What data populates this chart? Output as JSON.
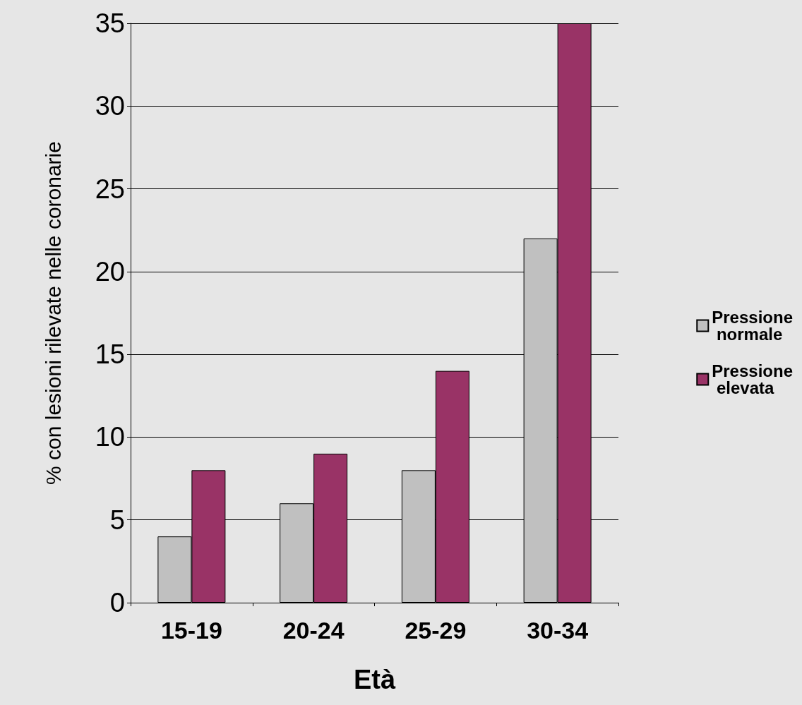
{
  "chart_data": {
    "type": "bar",
    "xlabel": "Età",
    "ylabel": "% con lesioni rilevate nelle coronarie",
    "categories": [
      "15-19",
      "20-24",
      "25-29",
      "30-34"
    ],
    "series": [
      {
        "name": "Pressione normale",
        "color": "#c0c0c0",
        "values": [
          4,
          6,
          8,
          22
        ]
      },
      {
        "name": "Pressione elevata",
        "color": "#993366",
        "values": [
          8,
          9,
          14,
          35
        ]
      }
    ],
    "ylim": [
      0,
      35
    ],
    "yticks": [
      0,
      5,
      10,
      15,
      20,
      25,
      30,
      35
    ],
    "grid": "y",
    "legend": "right"
  }
}
